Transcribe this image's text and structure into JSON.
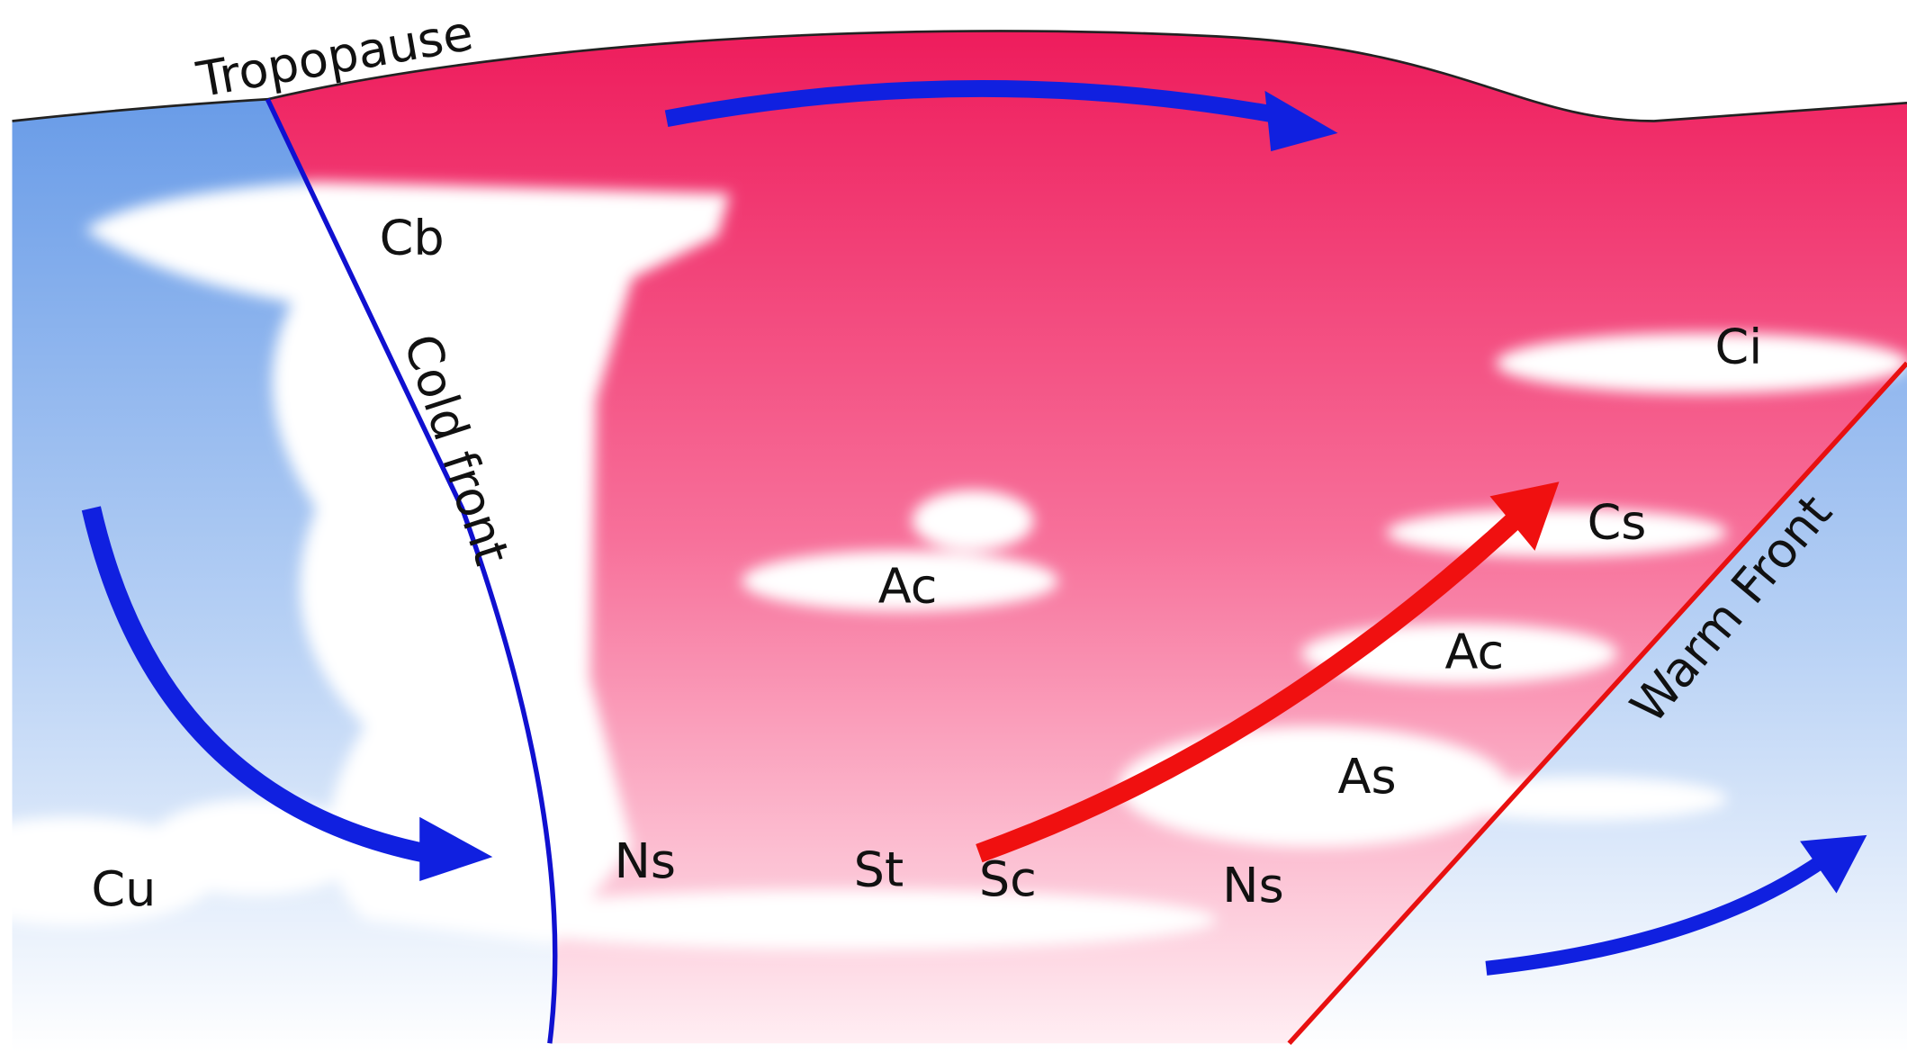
{
  "diagram": {
    "labels": {
      "tropopause": "Tropopause",
      "cold_front": "Cold front",
      "warm_front": "Warm Front",
      "cb": "Cb",
      "ci": "Ci",
      "cs": "Cs",
      "ac_middle": "Ac",
      "ac_right": "Ac",
      "as": "As",
      "ns_left": "Ns",
      "st": "St",
      "sc": "Sc",
      "ns_right": "Ns",
      "cu": "Cu"
    }
  }
}
